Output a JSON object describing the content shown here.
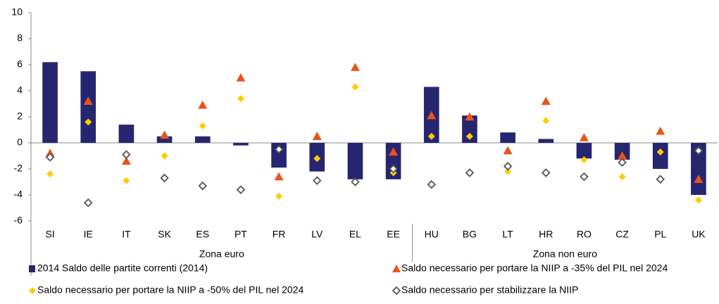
{
  "chart_data": {
    "type": "bar-marker",
    "categories": [
      "SI",
      "IE",
      "IT",
      "SK",
      "ES",
      "PT",
      "FR",
      "LV",
      "EL",
      "EE",
      "HU",
      "BG",
      "LT",
      "HR",
      "RO",
      "CZ",
      "PL",
      "UK"
    ],
    "groups": [
      {
        "name": "Zona euro",
        "count": 10
      },
      {
        "name": "Zona non euro",
        "count": 8
      }
    ],
    "ylim": [
      -6,
      10
    ],
    "yticks": [
      -6,
      -4,
      -2,
      0,
      2,
      4,
      6,
      8,
      10
    ],
    "grid": false,
    "series": [
      {
        "name": "2014 Saldo delle partite correnti (2014)",
        "color": "#262670",
        "marker": "bar",
        "values": [
          6.2,
          5.5,
          1.4,
          0.5,
          0.5,
          -0.2,
          -1.9,
          -2.2,
          -2.8,
          -2.8,
          4.3,
          2.1,
          0.8,
          0.3,
          -1.2,
          -1.3,
          -2.0,
          -4.0
        ]
      },
      {
        "name": "Saldo necessario per portare la NIIP a -35% del PIL nel 2024",
        "color": "#e8541c",
        "marker": "triangle",
        "values": [
          -0.8,
          3.2,
          -1.4,
          0.6,
          2.9,
          5.0,
          -2.6,
          0.5,
          5.8,
          -0.7,
          2.1,
          2.0,
          -0.6,
          3.2,
          0.4,
          -1.0,
          0.9,
          -2.8
        ]
      },
      {
        "name": "Saldo necessario per portare la NIIP a -50% del PIL nel 2024",
        "color": "#ffcc00",
        "marker": "diamond",
        "values": [
          -2.4,
          1.6,
          -2.9,
          -1.0,
          1.3,
          3.4,
          -4.1,
          -1.2,
          4.3,
          -2.3,
          0.5,
          0.5,
          -2.2,
          1.7,
          -1.3,
          -2.6,
          -0.7,
          -4.4
        ]
      },
      {
        "name": "Saldo necessario per stabilizzare la NIIP",
        "color": "#555555",
        "marker": "hollow-diamond",
        "values": [
          -1.1,
          -4.6,
          -0.9,
          -2.7,
          -3.3,
          -3.6,
          -0.5,
          -2.9,
          -3.0,
          -2.0,
          -3.2,
          -2.3,
          -1.8,
          -2.3,
          -2.6,
          -1.5,
          -2.8,
          -0.6
        ]
      }
    ]
  }
}
